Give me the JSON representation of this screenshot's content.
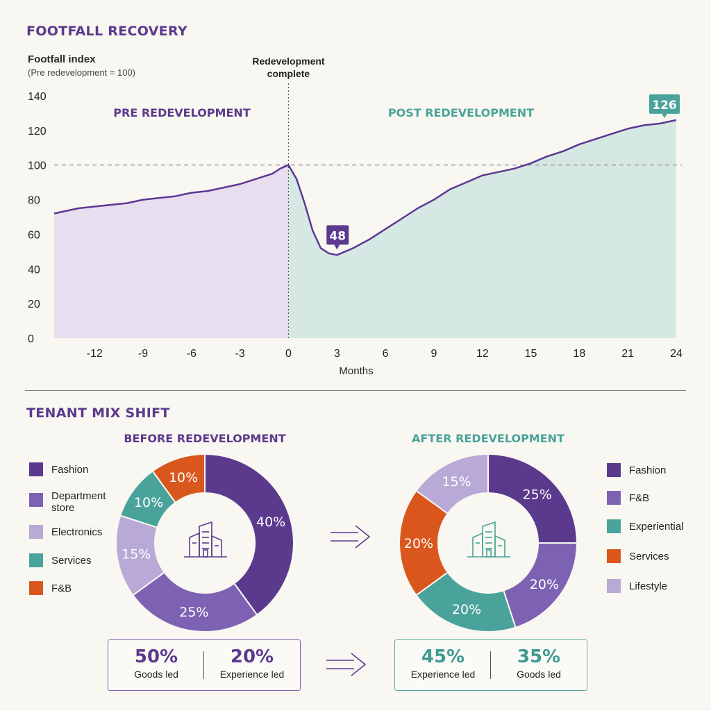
{
  "colors": {
    "purple": "#5b3a8e",
    "mid_purple": "#7d62b3",
    "lavender": "#b9a9d6",
    "teal": "#4aa39a",
    "orange": "#d9571c",
    "pre_fill": "#e7def0",
    "post_fill": "#d6e8e3",
    "line": "#5e3794"
  },
  "section1": {
    "title": "FOOTFALL RECOVERY",
    "ylabel": "Footfall index",
    "ylabel_sub": "(Pre redevelopment = 100)",
    "marker_label_line1": "Redevelopment",
    "marker_label_line2": "complete",
    "pre_label": "PRE REDEVELOPMENT",
    "post_label": "POST REDEVELOPMENT",
    "min_callout": "48",
    "end_callout": "126"
  },
  "section2": {
    "title": "TENANT MIX SHIFT",
    "before": {
      "title": "BEFORE REDEVELOPMENT",
      "summary": [
        {
          "value": "50%",
          "label": "Goods led"
        },
        {
          "value": "20%",
          "label": "Experience led"
        }
      ]
    },
    "after": {
      "title": "AFTER REDEVELOPMENT",
      "summary": [
        {
          "value": "45%",
          "label": "Experience led"
        },
        {
          "value": "35%",
          "label": "Goods led"
        }
      ]
    }
  },
  "chart_data": [
    {
      "type": "line",
      "xlabel": "Months",
      "ylabel": "Footfall index",
      "xlim": [
        -14.5,
        24
      ],
      "ylim": [
        0,
        140
      ],
      "x_ticks": [
        -12,
        -9,
        -6,
        -3,
        0,
        3,
        6,
        9,
        12,
        15,
        18,
        21,
        24
      ],
      "y_ticks": [
        0,
        20,
        40,
        60,
        80,
        100,
        120,
        140
      ],
      "reference_line": 100,
      "event_x": 0,
      "x": [
        -14.5,
        -13,
        -12,
        -11,
        -10,
        -9,
        -8,
        -7,
        -6,
        -5,
        -4,
        -3,
        -2,
        -1,
        -0.5,
        0,
        0.5,
        1,
        1.5,
        2,
        2.5,
        3,
        4,
        5,
        6,
        7,
        8,
        9,
        10,
        11,
        12,
        13,
        14,
        15,
        16,
        17,
        18,
        19,
        20,
        21,
        22,
        23,
        24
      ],
      "y": [
        72,
        75,
        76,
        77,
        78,
        80,
        81,
        82,
        84,
        85,
        87,
        89,
        92,
        95,
        98,
        100,
        92,
        78,
        62,
        52,
        49,
        48,
        52,
        57,
        63,
        69,
        75,
        80,
        86,
        90,
        94,
        96,
        98,
        101,
        105,
        108,
        112,
        115,
        118,
        121,
        123,
        124,
        126
      ]
    },
    {
      "type": "pie",
      "title": "BEFORE REDEVELOPMENT",
      "labels": [
        "Fashion",
        "Department store",
        "Electronics",
        "Services",
        "F&B"
      ],
      "values": [
        40,
        25,
        15,
        10,
        10
      ],
      "colors": [
        "#5b3a8e",
        "#7d62b3",
        "#b9a9d6",
        "#4aa39a",
        "#d9571c"
      ]
    },
    {
      "type": "pie",
      "title": "AFTER REDEVELOPMENT",
      "labels": [
        "Fashion",
        "F&B",
        "Experiential",
        "Services",
        "Lifestyle"
      ],
      "values": [
        25,
        20,
        20,
        20,
        15
      ],
      "colors": [
        "#5b3a8e",
        "#7d62b3",
        "#4aa39a",
        "#d9571c",
        "#b9a9d6"
      ]
    }
  ]
}
